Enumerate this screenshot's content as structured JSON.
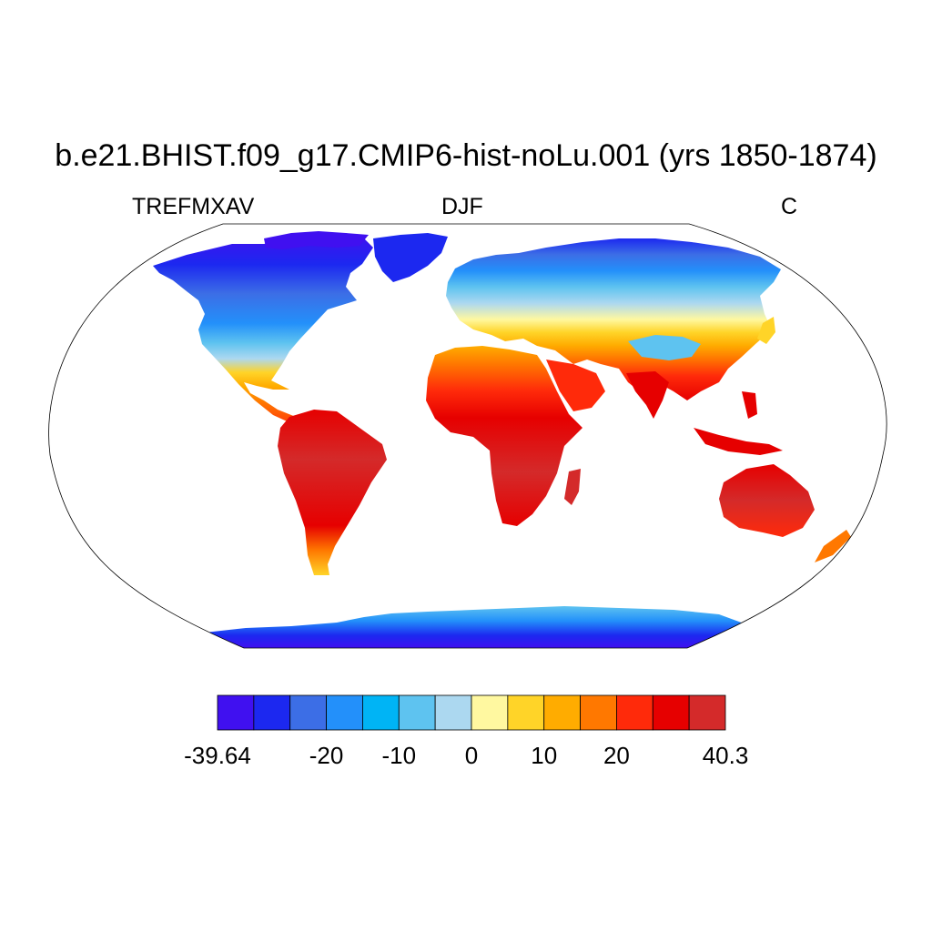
{
  "title": "b.e21.BHIST.f09_g17.CMIP6-hist-noLu.001 (yrs 1850-1874)",
  "left_label": "TREFMXAV",
  "center_label": "DJF",
  "right_label": "C",
  "colorbar": {
    "colors": [
      "#4010f0",
      "#1c28f0",
      "#3c6ee6",
      "#2390fa",
      "#00b4f5",
      "#5ec3f0",
      "#acd8f0",
      "#fff8a0",
      "#ffd428",
      "#ffac00",
      "#ff7800",
      "#ff2a0a",
      "#e60000",
      "#d42a2a"
    ],
    "tick_labels": [
      "-39.64",
      "-20",
      "-10",
      "0",
      "10",
      "20",
      "40.3"
    ]
  }
}
